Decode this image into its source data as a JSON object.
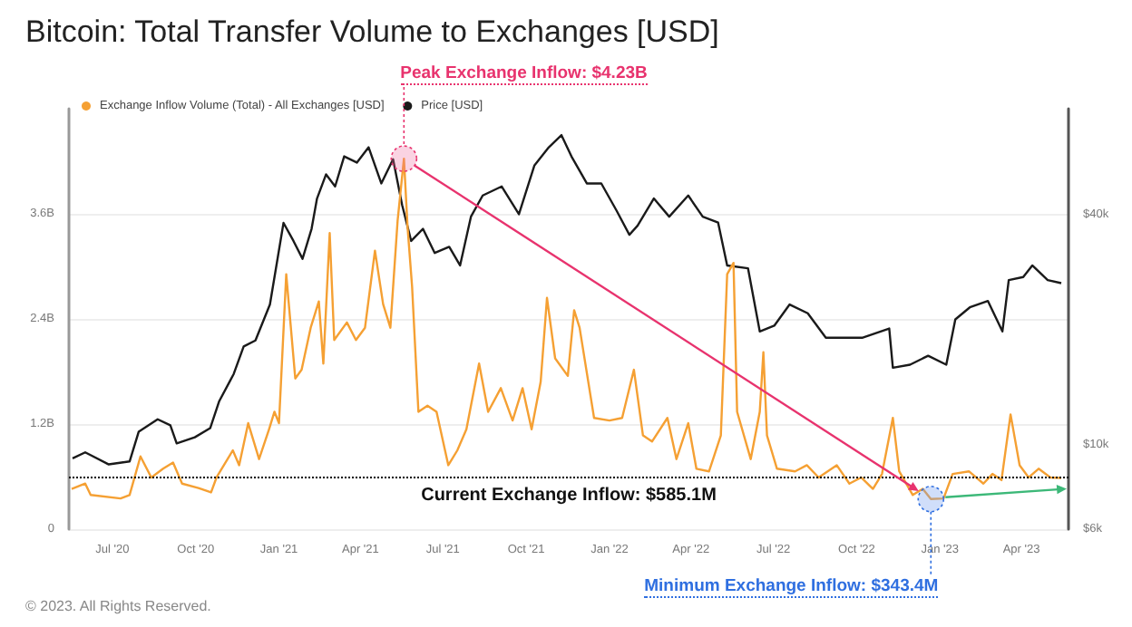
{
  "chart_data": {
    "type": "line",
    "title": "Bitcoin: Total Transfer Volume to Exchanges [USD]",
    "series": [
      {
        "name": "Exchange Inflow Volume (Total) - All Exchanges [USD]",
        "color": "#f5a033",
        "axis": "y",
        "x": [
          "2020-05-17",
          "2020-06-01",
          "2020-06-07",
          "2020-07-10",
          "2020-07-20",
          "2020-08-01",
          "2020-08-13",
          "2020-08-26",
          "2020-09-06",
          "2020-09-16",
          "2020-10-04",
          "2020-10-18",
          "2020-10-24",
          "2020-11-11",
          "2020-11-18",
          "2020-11-28",
          "2020-12-10",
          "2020-12-21",
          "2020-12-27",
          "2021-01-01",
          "2021-01-09",
          "2021-01-19",
          "2021-01-26",
          "2021-02-05",
          "2021-02-14",
          "2021-02-19",
          "2021-02-26",
          "2021-03-03",
          "2021-03-17",
          "2021-03-27",
          "2021-04-06",
          "2021-04-17",
          "2021-04-26",
          "2021-05-04",
          "2021-05-12",
          "2021-05-19",
          "2021-05-23",
          "2021-05-28",
          "2021-06-04",
          "2021-06-14",
          "2021-06-24",
          "2021-07-07",
          "2021-07-17",
          "2021-07-27",
          "2021-08-10",
          "2021-08-20",
          "2021-09-03",
          "2021-09-16",
          "2021-09-27",
          "2021-10-07",
          "2021-10-17",
          "2021-10-24",
          "2021-11-02",
          "2021-11-16",
          "2021-11-23",
          "2021-11-29",
          "2021-12-15",
          "2022-01-01",
          "2022-01-15",
          "2022-01-28",
          "2022-02-07",
          "2022-02-17",
          "2022-03-06",
          "2022-03-16",
          "2022-03-29",
          "2022-04-07",
          "2022-04-21",
          "2022-05-04",
          "2022-05-11",
          "2022-05-18",
          "2022-05-22",
          "2022-06-06",
          "2022-06-16",
          "2022-06-20",
          "2022-06-24",
          "2022-07-05",
          "2022-07-25",
          "2022-08-07",
          "2022-08-20",
          "2022-09-09",
          "2022-09-23",
          "2022-10-06",
          "2022-10-19",
          "2022-10-29",
          "2022-11-10",
          "2022-11-17",
          "2022-12-02",
          "2022-12-13",
          "2022-12-22",
          "2023-01-05",
          "2023-01-15",
          "2023-02-02",
          "2023-02-18",
          "2023-02-28",
          "2023-03-10",
          "2023-03-20",
          "2023-03-30",
          "2023-04-09",
          "2023-04-20",
          "2023-05-03",
          "2023-05-15"
        ],
        "values": [
          0.46,
          0.52,
          0.39,
          0.35,
          0.39,
          0.83,
          0.59,
          0.69,
          0.76,
          0.52,
          0.47,
          0.42,
          0.59,
          0.9,
          0.73,
          1.21,
          0.8,
          1.14,
          1.34,
          1.21,
          2.91,
          1.72,
          1.82,
          2.3,
          2.6,
          1.89,
          3.38,
          2.16,
          2.36,
          2.16,
          2.3,
          3.18,
          2.57,
          2.3,
          3.52,
          4.23,
          3.45,
          2.77,
          1.34,
          1.41,
          1.34,
          0.73,
          0.9,
          1.14,
          1.89,
          1.34,
          1.61,
          1.24,
          1.61,
          1.14,
          1.68,
          2.64,
          1.95,
          1.75,
          2.5,
          2.3,
          1.27,
          1.24,
          1.27,
          1.82,
          1.07,
          1.0,
          1.27,
          0.8,
          1.21,
          0.69,
          0.66,
          1.07,
          2.91,
          3.04,
          1.34,
          0.8,
          1.34,
          2.02,
          1.07,
          0.69,
          0.66,
          0.73,
          0.59,
          0.73,
          0.52,
          0.59,
          0.46,
          0.63,
          1.27,
          0.66,
          0.39,
          0.46,
          0.3434,
          0.35,
          0.63,
          0.66,
          0.52,
          0.63,
          0.56,
          1.31,
          0.73,
          0.59,
          0.69,
          0.59,
          0.5851
        ]
      },
      {
        "name": "Price [USD]",
        "color": "#1a1a1a",
        "axis": "y2",
        "x": [
          "2020-05-18",
          "2020-06-01",
          "2020-06-27",
          "2020-07-20",
          "2020-07-30",
          "2020-08-20",
          "2020-09-03",
          "2020-09-10",
          "2020-09-30",
          "2020-10-17",
          "2020-10-27",
          "2020-11-12",
          "2020-11-23",
          "2020-12-06",
          "2020-12-22",
          "2021-01-06",
          "2021-01-17",
          "2021-01-27",
          "2021-02-06",
          "2021-02-12",
          "2021-02-22",
          "2021-03-04",
          "2021-03-14",
          "2021-03-28",
          "2021-04-10",
          "2021-04-24",
          "2021-05-07",
          "2021-05-17",
          "2021-05-27",
          "2021-06-09",
          "2021-06-22",
          "2021-07-08",
          "2021-07-20",
          "2021-08-01",
          "2021-08-14",
          "2021-09-04",
          "2021-09-23",
          "2021-10-10",
          "2021-10-26",
          "2021-11-09",
          "2021-11-20",
          "2021-12-07",
          "2021-12-23",
          "2022-01-09",
          "2022-01-23",
          "2022-02-01",
          "2022-02-19",
          "2022-03-08",
          "2022-03-29",
          "2022-04-14",
          "2022-05-01",
          "2022-05-11",
          "2022-06-03",
          "2022-06-16",
          "2022-07-02",
          "2022-07-19",
          "2022-08-08",
          "2022-08-28",
          "2022-09-17",
          "2022-10-07",
          "2022-11-06",
          "2022-11-10",
          "2022-11-29",
          "2022-12-19",
          "2023-01-08",
          "2023-01-18",
          "2023-02-03",
          "2023-02-23",
          "2023-03-11",
          "2023-03-18",
          "2023-04-03",
          "2023-04-13",
          "2023-04-30",
          "2023-05-15"
        ],
        "values": [
          9200,
          9540,
          8870,
          9030,
          10800,
          11650,
          11230,
          10070,
          10450,
          11040,
          13000,
          15320,
          18080,
          18750,
          23300,
          38150,
          34200,
          30700,
          36800,
          44200,
          51130,
          47530,
          57000,
          54900,
          60200,
          48400,
          56000,
          42500,
          34200,
          36800,
          31800,
          33000,
          29500,
          39600,
          45000,
          47530,
          40200,
          53900,
          60200,
          64800,
          57000,
          48400,
          48400,
          41000,
          35500,
          37500,
          44200,
          39600,
          45000,
          39600,
          38200,
          29500,
          29000,
          19800,
          20500,
          23300,
          22100,
          19060,
          19060,
          19060,
          20150,
          15900,
          16200,
          17100,
          16200,
          21300,
          22900,
          23800,
          19800,
          26990,
          27500,
          29500,
          26990,
          26500
        ]
      }
    ],
    "xlim": [
      "2020-05-14",
      "2023-05-23"
    ],
    "xticks": [
      {
        "value": "2020-07-01",
        "label": "Jul '20"
      },
      {
        "value": "2020-10-01",
        "label": "Oct '20"
      },
      {
        "value": "2021-01-01",
        "label": "Jan '21"
      },
      {
        "value": "2021-04-01",
        "label": "Apr '21"
      },
      {
        "value": "2021-07-01",
        "label": "Jul '21"
      },
      {
        "value": "2021-10-01",
        "label": "Oct '21"
      },
      {
        "value": "2022-01-01",
        "label": "Jan '22"
      },
      {
        "value": "2022-04-01",
        "label": "Apr '22"
      },
      {
        "value": "2022-07-01",
        "label": "Jul '22"
      },
      {
        "value": "2022-10-01",
        "label": "Oct '22"
      },
      {
        "value": "2023-01-01",
        "label": "Jan '23"
      },
      {
        "value": "2023-04-01",
        "label": "Apr '23"
      }
    ],
    "ylim": [
      0,
      4.8
    ],
    "yticks": [
      0,
      {
        "value": 1.2,
        "label": "1.2B"
      },
      {
        "value": 2.4,
        "label": "2.4B"
      },
      {
        "value": 3.6,
        "label": "3.6B"
      }
    ],
    "y2lim": [
      6000,
      76000
    ],
    "y2ticks": [
      {
        "value": 6000,
        "label": "$6k"
      },
      {
        "value": 10000,
        "label": "$10k"
      },
      {
        "value": 40000,
        "label": "$40k"
      }
    ],
    "log": "y2",
    "grid": "y",
    "legend": "top left",
    "ref_lines": [
      {
        "axis": "y",
        "value": 0.5851,
        "label": "Current Exchange Inflow: $585.1M",
        "color": "#000000",
        "line_style": "dotted"
      }
    ],
    "annotations": [
      {
        "text": "Peak Exchange Inflow: $4.23B",
        "x": "2021-05-19",
        "y": 4.23
      },
      {
        "text": "Minimum Exchange Inflow: $343.4M",
        "x": "2022-12-22",
        "y": 0.3434
      },
      "© 2023. All Rights Reserved."
    ]
  }
}
